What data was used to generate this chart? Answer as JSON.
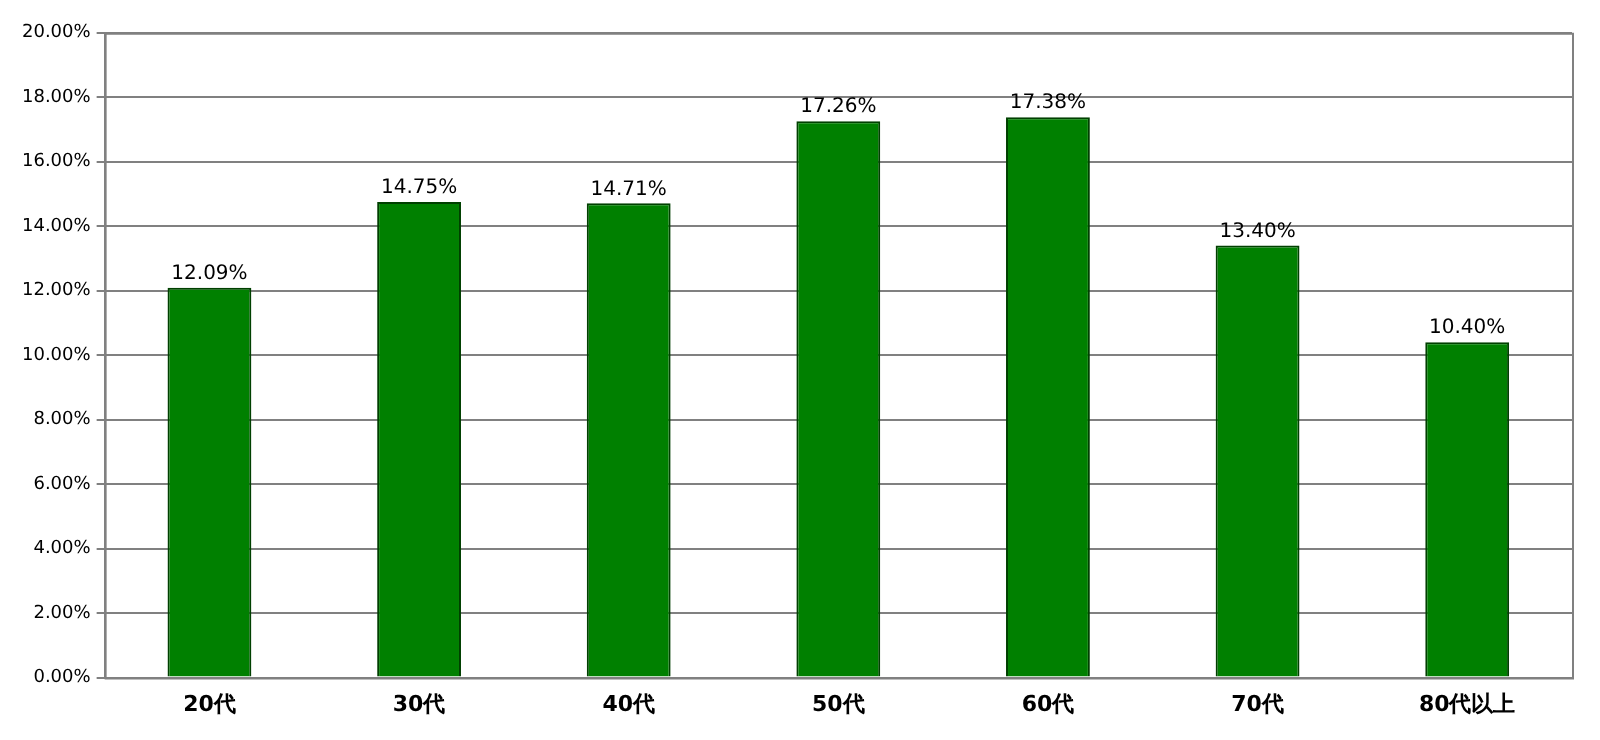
{
  "chart_data": {
    "type": "bar",
    "categories": [
      "20代",
      "30代",
      "40代",
      "50代",
      "60代",
      "70代",
      "80代以上"
    ],
    "values": [
      12.09,
      14.75,
      14.71,
      17.26,
      17.38,
      13.4,
      10.4
    ],
    "value_labels": [
      "12.09%",
      "14.75%",
      "14.71%",
      "17.26%",
      "17.38%",
      "13.40%",
      "10.40%"
    ],
    "color": "#008000",
    "ylim": [
      0,
      20
    ],
    "yticks": [
      {
        "value": 0,
        "label": "0.00%"
      },
      {
        "value": 2,
        "label": "2.00%"
      },
      {
        "value": 4,
        "label": "4.00%"
      },
      {
        "value": 6,
        "label": "6.00%"
      },
      {
        "value": 8,
        "label": "8.00%"
      },
      {
        "value": 10,
        "label": "10.00%"
      },
      {
        "value": 12,
        "label": "12.00%"
      },
      {
        "value": 14,
        "label": "14.00%"
      },
      {
        "value": 16,
        "label": "16.00%"
      },
      {
        "value": 18,
        "label": "18.00%"
      },
      {
        "value": 20,
        "label": "20.00%"
      }
    ],
    "grid": "y",
    "legend": false
  }
}
